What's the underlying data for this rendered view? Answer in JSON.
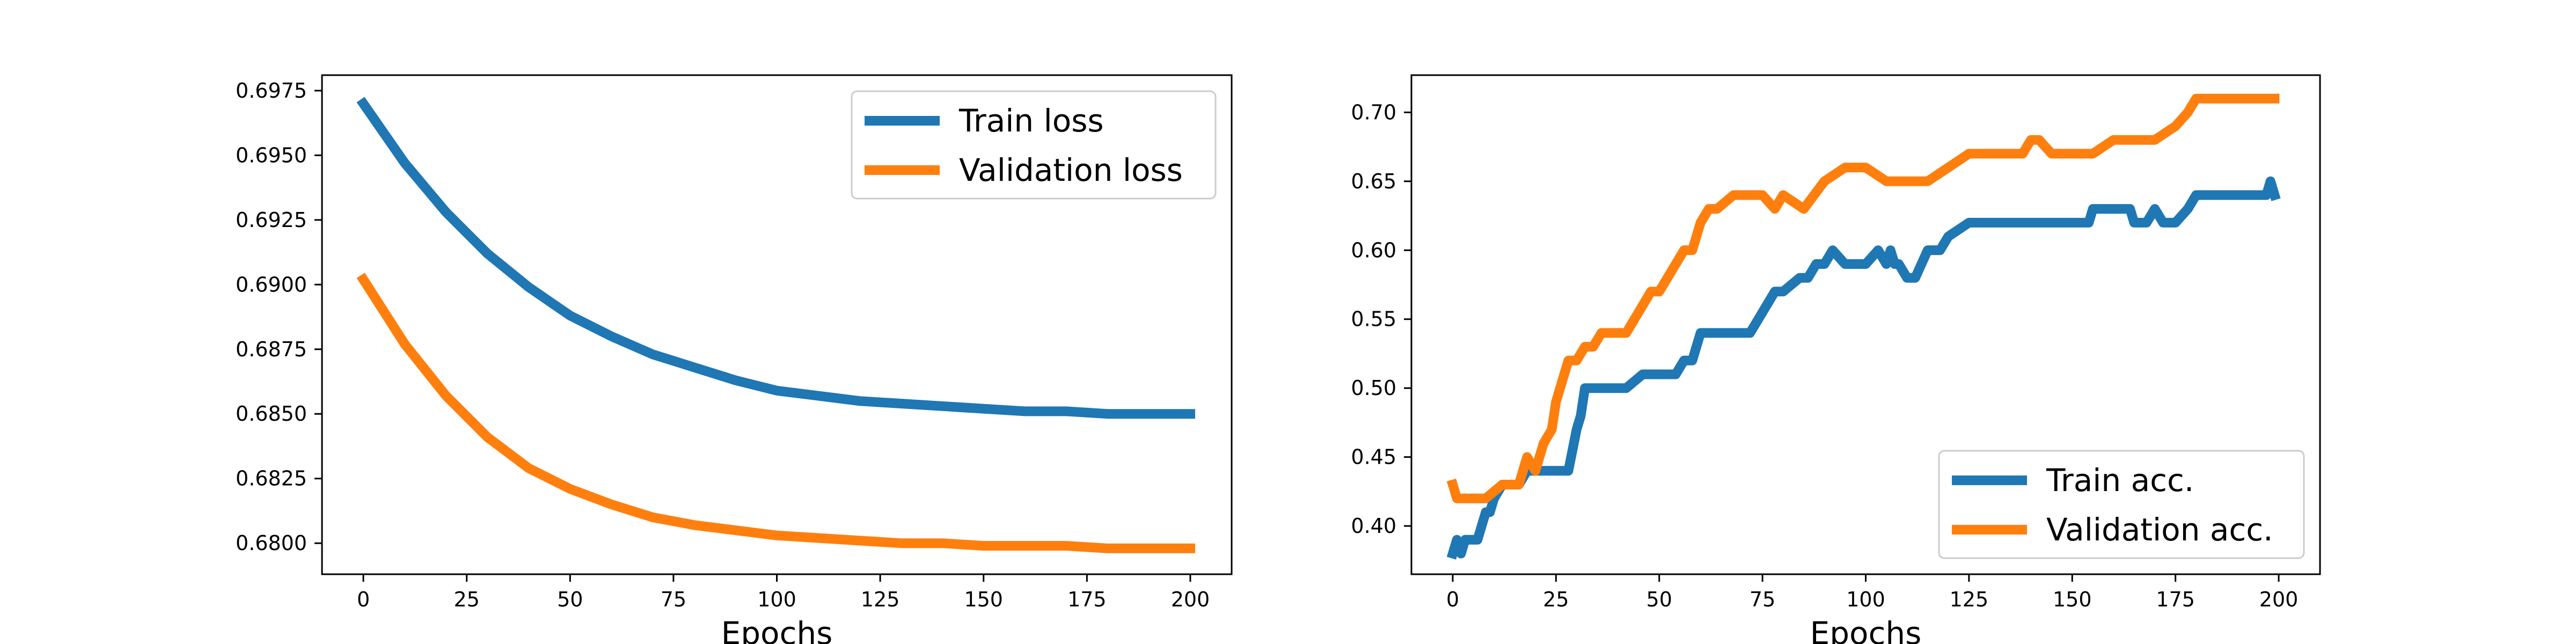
{
  "chart_data": [
    {
      "type": "line",
      "title": "",
      "xlabel": "Epochs",
      "ylabel": "",
      "xlim": [
        -10,
        210
      ],
      "ylim": [
        0.6788,
        0.6981
      ],
      "xticks": [
        0,
        25,
        50,
        75,
        100,
        125,
        150,
        175,
        200
      ],
      "xtick_labels": [
        "0",
        "25",
        "50",
        "75",
        "100",
        "125",
        "150",
        "175",
        "200"
      ],
      "yticks": [
        0.68,
        0.6825,
        0.685,
        0.6875,
        0.69,
        0.6925,
        0.695,
        0.6975
      ],
      "ytick_labels": [
        "0.6800",
        "0.6825",
        "0.6850",
        "0.6875",
        "0.6900",
        "0.6925",
        "0.6950",
        "0.6975"
      ],
      "grid": false,
      "legend": "upper right",
      "series": [
        {
          "name": "Train loss",
          "color": "#1f77b4",
          "x": [
            0,
            10,
            20,
            30,
            40,
            50,
            60,
            70,
            80,
            90,
            100,
            110,
            120,
            130,
            140,
            150,
            160,
            170,
            180,
            190,
            200
          ],
          "values": [
            0.697,
            0.6947,
            0.6928,
            0.6912,
            0.6899,
            0.6888,
            0.688,
            0.6873,
            0.6868,
            0.6863,
            0.6859,
            0.6857,
            0.6855,
            0.6854,
            0.6853,
            0.6852,
            0.6851,
            0.6851,
            0.685,
            0.685,
            0.685
          ]
        },
        {
          "name": "Validation loss",
          "color": "#ff7f0e",
          "x": [
            0,
            10,
            20,
            30,
            40,
            50,
            60,
            70,
            80,
            90,
            100,
            110,
            120,
            130,
            140,
            150,
            160,
            170,
            180,
            190,
            200
          ],
          "values": [
            0.6902,
            0.6877,
            0.6857,
            0.6841,
            0.6829,
            0.6821,
            0.6815,
            0.681,
            0.6807,
            0.6805,
            0.6803,
            0.6802,
            0.6801,
            0.68,
            0.68,
            0.6799,
            0.6799,
            0.6799,
            0.6798,
            0.6798,
            0.6798
          ]
        }
      ]
    },
    {
      "type": "line",
      "title": "",
      "xlabel": "Epochs",
      "ylabel": "",
      "xlim": [
        -10,
        210
      ],
      "ylim": [
        0.365,
        0.727
      ],
      "xticks": [
        0,
        25,
        50,
        75,
        100,
        125,
        150,
        175,
        200
      ],
      "xtick_labels": [
        "0",
        "25",
        "50",
        "75",
        "100",
        "125",
        "150",
        "175",
        "200"
      ],
      "yticks": [
        0.4,
        0.45,
        0.5,
        0.55,
        0.6,
        0.65,
        0.7
      ],
      "ytick_labels": [
        "0.40",
        "0.45",
        "0.50",
        "0.55",
        "0.60",
        "0.65",
        "0.70"
      ],
      "grid": false,
      "legend": "lower right",
      "series": [
        {
          "name": "Train acc.",
          "color": "#1f77b4",
          "x": [
            0,
            1,
            2,
            3,
            4,
            5,
            6,
            8,
            9,
            10,
            12,
            14,
            16,
            18,
            20,
            22,
            25,
            28,
            30,
            31,
            32,
            34,
            38,
            42,
            46,
            50,
            54,
            56,
            58,
            60,
            65,
            70,
            72,
            74,
            76,
            78,
            80,
            84,
            86,
            88,
            90,
            92,
            95,
            98,
            100,
            103,
            105,
            106,
            107,
            108,
            110,
            112,
            115,
            118,
            120,
            125,
            130,
            135,
            140,
            145,
            150,
            154,
            155,
            160,
            164,
            165,
            168,
            170,
            172,
            175,
            178,
            180,
            185,
            190,
            195,
            197,
            198,
            199
          ],
          "values": [
            0.38,
            0.39,
            0.38,
            0.39,
            0.39,
            0.39,
            0.39,
            0.41,
            0.41,
            0.42,
            0.43,
            0.43,
            0.43,
            0.44,
            0.44,
            0.44,
            0.44,
            0.44,
            0.47,
            0.48,
            0.5,
            0.5,
            0.5,
            0.5,
            0.51,
            0.51,
            0.51,
            0.52,
            0.52,
            0.54,
            0.54,
            0.54,
            0.54,
            0.55,
            0.56,
            0.57,
            0.57,
            0.58,
            0.58,
            0.59,
            0.59,
            0.6,
            0.59,
            0.59,
            0.59,
            0.6,
            0.59,
            0.6,
            0.59,
            0.59,
            0.58,
            0.58,
            0.6,
            0.6,
            0.61,
            0.62,
            0.62,
            0.62,
            0.62,
            0.62,
            0.62,
            0.62,
            0.63,
            0.63,
            0.63,
            0.62,
            0.62,
            0.63,
            0.62,
            0.62,
            0.63,
            0.64,
            0.64,
            0.64,
            0.64,
            0.64,
            0.65,
            0.64
          ]
        },
        {
          "name": "Validation acc.",
          "color": "#ff7f0e",
          "x": [
            0,
            1,
            2,
            4,
            8,
            12,
            14,
            16,
            18,
            20,
            22,
            24,
            25,
            26,
            28,
            30,
            32,
            34,
            36,
            40,
            42,
            44,
            46,
            48,
            50,
            52,
            54,
            56,
            58,
            60,
            62,
            64,
            68,
            72,
            75,
            78,
            80,
            85,
            90,
            95,
            100,
            105,
            110,
            115,
            120,
            125,
            130,
            135,
            138,
            140,
            142,
            145,
            150,
            155,
            160,
            165,
            170,
            175,
            178,
            180,
            185,
            190,
            195,
            199
          ],
          "values": [
            0.43,
            0.42,
            0.42,
            0.42,
            0.42,
            0.43,
            0.43,
            0.43,
            0.45,
            0.44,
            0.46,
            0.47,
            0.49,
            0.5,
            0.52,
            0.52,
            0.53,
            0.53,
            0.54,
            0.54,
            0.54,
            0.55,
            0.56,
            0.57,
            0.57,
            0.58,
            0.59,
            0.6,
            0.6,
            0.62,
            0.63,
            0.63,
            0.64,
            0.64,
            0.64,
            0.63,
            0.64,
            0.63,
            0.65,
            0.66,
            0.66,
            0.65,
            0.65,
            0.65,
            0.66,
            0.67,
            0.67,
            0.67,
            0.67,
            0.68,
            0.68,
            0.67,
            0.67,
            0.67,
            0.68,
            0.68,
            0.68,
            0.69,
            0.7,
            0.71,
            0.71,
            0.71,
            0.71,
            0.71
          ]
        }
      ]
    }
  ]
}
